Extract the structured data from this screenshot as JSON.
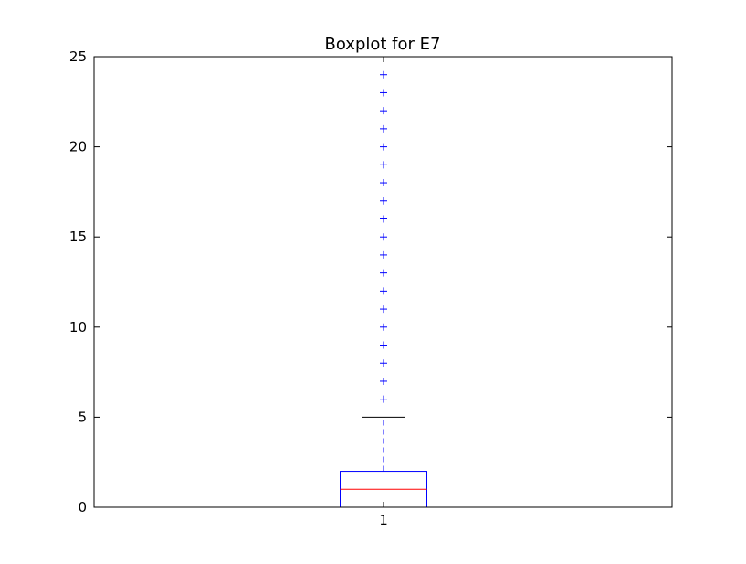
{
  "chart_data": {
    "type": "boxplot",
    "title": "Boxplot for E7",
    "xlabel": "",
    "ylabel": "",
    "ylim": [
      0,
      25
    ],
    "y_ticks": [
      0,
      5,
      10,
      15,
      20,
      25
    ],
    "x_tick_labels": [
      "1"
    ],
    "grid": false,
    "boxes": [
      {
        "label": "1",
        "whisker_low": 0,
        "q1": 0,
        "median": 1,
        "q3": 2,
        "whisker_high": 5,
        "outliers": [
          6,
          7,
          8,
          9,
          10,
          11,
          12,
          13,
          14,
          15,
          16,
          17,
          18,
          19,
          20,
          21,
          22,
          23,
          24
        ]
      }
    ],
    "colors": {
      "box": "#0000ff",
      "median": "#ff0000",
      "whisker": "#0000ff",
      "cap": "#000000",
      "outlier": "#0000ff",
      "axes": "#000000"
    }
  }
}
